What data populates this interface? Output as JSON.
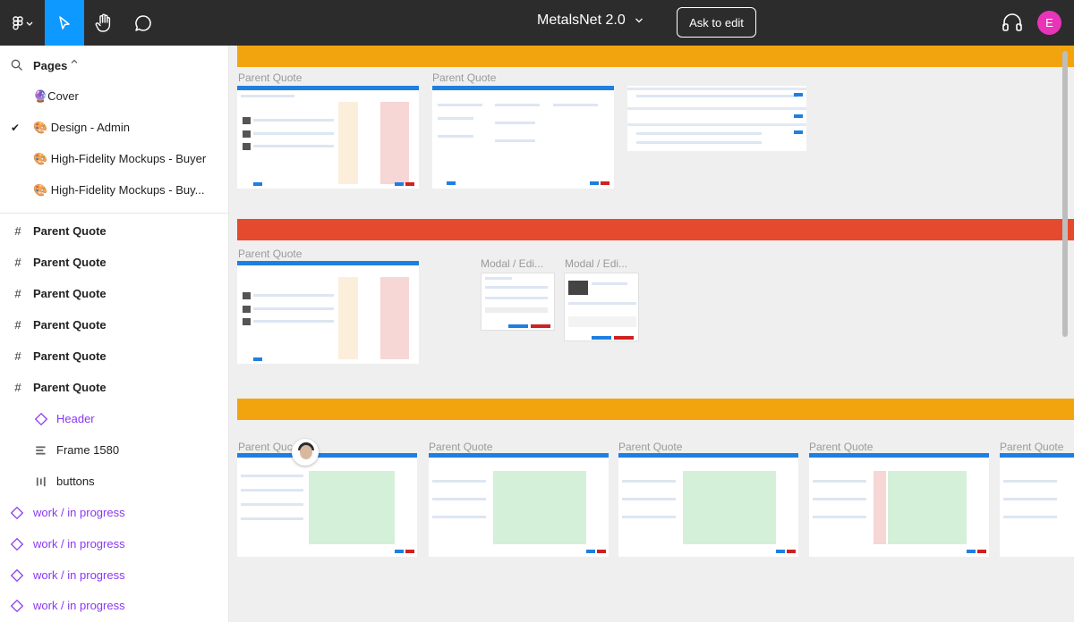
{
  "topbar": {
    "title": "MetalsNet 2.0",
    "ask_button": "Ask to edit",
    "avatar_initial": "E",
    "icons": [
      "figma-menu-icon",
      "move-tool-icon",
      "hand-tool-icon",
      "comment-tool-icon",
      "headphones-icon"
    ]
  },
  "sidebar": {
    "pages_label": "Pages",
    "pages": [
      {
        "label": "🔮Cover",
        "selected": false
      },
      {
        "label": "🎨 Design - Admin",
        "selected": true
      },
      {
        "label": "🎨 High-Fidelity Mockups - Buyer",
        "selected": false
      },
      {
        "label": "🎨 High-Fidelity Mockups - Buy...",
        "selected": false
      }
    ],
    "layers": [
      {
        "label": "Parent Quote",
        "icon": "frame-icon"
      },
      {
        "label": "Parent Quote",
        "icon": "frame-icon"
      },
      {
        "label": "Parent Quote",
        "icon": "frame-icon"
      },
      {
        "label": "Parent Quote",
        "icon": "frame-icon"
      },
      {
        "label": "Parent Quote",
        "icon": "frame-icon"
      },
      {
        "label": "Parent Quote",
        "icon": "frame-icon"
      },
      {
        "label": "Header",
        "icon": "component-instance-icon"
      },
      {
        "label": "Frame 1580",
        "icon": "auto-layout-vertical-icon"
      },
      {
        "label": "buttons",
        "icon": "auto-layout-horizontal-icon"
      },
      {
        "label": "work / in progress",
        "icon": "component-instance-icon"
      },
      {
        "label": "work / in progress",
        "icon": "component-instance-icon"
      },
      {
        "label": "work / in progress",
        "icon": "component-instance-icon"
      },
      {
        "label": "work / in progress",
        "icon": "component-instance-icon"
      }
    ]
  },
  "canvas": {
    "band_colors": {
      "band1": "#f2a40f",
      "band2": "#e54a2e",
      "band3": "#f2a40f"
    },
    "labels": {
      "r1a": "Parent Quote",
      "r1b": "Parent Quote",
      "r2a": "Parent Quote",
      "r2b": "Modal / Edi...",
      "r2c": "Modal / Edi...",
      "r3a": "Parent Quc",
      "r3b": "Parent Quote",
      "r3c": "Parent Quote",
      "r3d": "Parent Quote",
      "r3e": "Parent Quote"
    }
  }
}
